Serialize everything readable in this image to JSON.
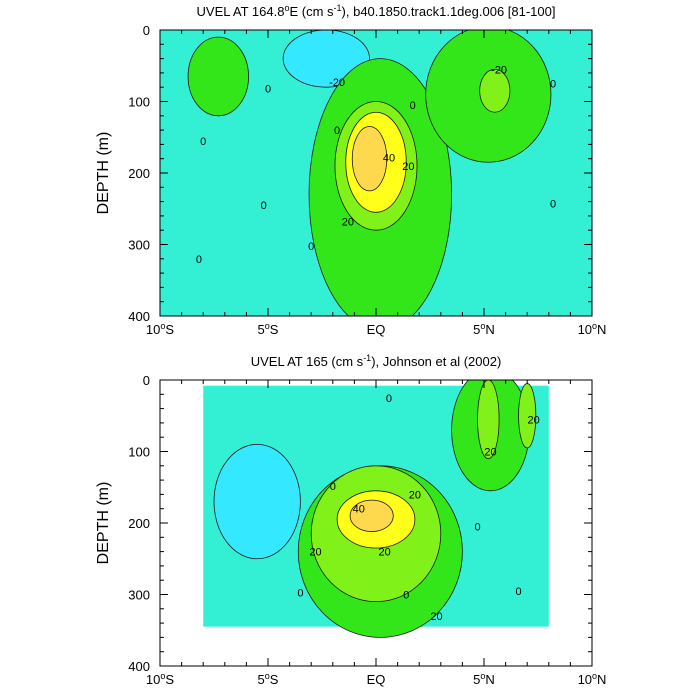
{
  "colors": {
    "neg_20": "#33e8ff",
    "neg_10": "#33e8ff",
    "c_0": "#33f0d4",
    "c_10": "#33e61a",
    "c_20": "#80f21a",
    "c_30": "#ffff1a",
    "c_40": "#ffd94d",
    "c_50": "#ffad33"
  },
  "chart_data": [
    {
      "type": "contour",
      "title": "UVEL AT 164.8°E (cm s⁻¹), b40.1850.track1.1deg.006 [81-100]",
      "title_parts": {
        "prefix": "UVEL AT 164.8",
        "sup1": "o",
        "mid": "E (cm s",
        "sup2": "-1",
        "suffix": "), b40.1850.track1.1deg.006 [81-100]"
      },
      "ylabel": "DEPTH (m)",
      "xlim": [
        -10,
        10
      ],
      "ylim": [
        400,
        0
      ],
      "x_ticks": [
        {
          "value": -10,
          "num": "10",
          "sup": "o",
          "hemi": "S"
        },
        {
          "value": -5,
          "num": "5",
          "sup": "o",
          "hemi": "S"
        },
        {
          "value": 0,
          "num": "EQ",
          "sup": "",
          "hemi": ""
        },
        {
          "value": 5,
          "num": "5",
          "sup": "o",
          "hemi": "N"
        },
        {
          "value": 10,
          "num": "10",
          "sup": "o",
          "hemi": "N"
        }
      ],
      "y_ticks": [
        0,
        100,
        200,
        300,
        400
      ],
      "contour_interval": 10,
      "background_level": 0,
      "features": [
        {
          "level": 10,
          "lat": -7.3,
          "depth_center": 65,
          "lat_halfwidth": 1.4,
          "depth_halfwidth": 55
        },
        {
          "level": 10,
          "lat": 0.2,
          "depth_center": 230,
          "lat_halfwidth": 3.3,
          "depth_halfwidth": 190
        },
        {
          "level": 10,
          "lat": 5.2,
          "depth_center": 90,
          "lat_halfwidth": 2.9,
          "depth_halfwidth": 95
        },
        {
          "level": 20,
          "lat": 0.0,
          "depth_center": 190,
          "lat_halfwidth": 1.9,
          "depth_halfwidth": 90
        },
        {
          "level": 20,
          "lat": 5.5,
          "depth_center": 85,
          "lat_halfwidth": 0.7,
          "depth_halfwidth": 30
        },
        {
          "level": 30,
          "lat": 0.0,
          "depth_center": 185,
          "lat_halfwidth": 1.4,
          "depth_halfwidth": 70
        },
        {
          "level": 40,
          "lat": -0.3,
          "depth_center": 180,
          "lat_halfwidth": 0.8,
          "depth_halfwidth": 45
        },
        {
          "level": -10,
          "lat": -2.3,
          "depth_center": 40,
          "lat_halfwidth": 2.0,
          "depth_halfwidth": 40
        }
      ],
      "contour_labels": [
        {
          "text": "-20",
          "lat": -1.8,
          "depth": 73
        },
        {
          "text": "-20",
          "lat": 5.7,
          "depth": 55
        },
        {
          "text": "40",
          "lat": 0.6,
          "depth": 178
        },
        {
          "text": "20",
          "lat": 1.5,
          "depth": 190
        },
        {
          "text": "20",
          "lat": -1.3,
          "depth": 268
        },
        {
          "text": "0",
          "lat": -8.0,
          "depth": 155
        },
        {
          "text": "0",
          "lat": -8.2,
          "depth": 320
        },
        {
          "text": "0",
          "lat": -5.0,
          "depth": 82
        },
        {
          "text": "0",
          "lat": -5.2,
          "depth": 245
        },
        {
          "text": "0",
          "lat": -1.8,
          "depth": 140
        },
        {
          "text": "0",
          "lat": -3.0,
          "depth": 302
        },
        {
          "text": "0",
          "lat": 1.7,
          "depth": 105
        },
        {
          "text": "0",
          "lat": 8.2,
          "depth": 75
        },
        {
          "text": "0",
          "lat": 8.2,
          "depth": 243
        }
      ]
    },
    {
      "type": "contour",
      "title": "UVEL AT 165 (cm s⁻¹), Johnson et al (2002)",
      "title_parts": {
        "prefix": "UVEL AT 165 (cm s",
        "sup1": "",
        "mid": "",
        "sup2": "-1",
        "suffix": "), Johnson et al (2002)"
      },
      "ylabel": "DEPTH (m)",
      "xlim": [
        -10,
        10
      ],
      "ylim": [
        400,
        0
      ],
      "x_ticks": [
        {
          "value": -10,
          "num": "10",
          "sup": "o",
          "hemi": "S"
        },
        {
          "value": -5,
          "num": "5",
          "sup": "o",
          "hemi": "S"
        },
        {
          "value": 0,
          "num": "EQ",
          "sup": "",
          "hemi": ""
        },
        {
          "value": 5,
          "num": "5",
          "sup": "o",
          "hemi": "N"
        },
        {
          "value": 10,
          "num": "10",
          "sup": "o",
          "hemi": "N"
        }
      ],
      "y_ticks": [
        0,
        100,
        200,
        300,
        400
      ],
      "contour_interval": 10,
      "background_level": 0,
      "data_extent": {
        "lat": [
          -8,
          8
        ],
        "depth_top": 8,
        "depth_bottom": 345
      },
      "features": [
        {
          "level": 10,
          "lat": 0.2,
          "depth_center": 240,
          "lat_halfwidth": 3.8,
          "depth_halfwidth": 120
        },
        {
          "level": 10,
          "lat": 5.3,
          "depth_center": 70,
          "lat_halfwidth": 1.8,
          "depth_halfwidth": 85
        },
        {
          "level": 20,
          "lat": 0.0,
          "depth_center": 215,
          "lat_halfwidth": 3.0,
          "depth_halfwidth": 95
        },
        {
          "level": 20,
          "lat": 5.2,
          "depth_center": 55,
          "lat_halfwidth": 0.5,
          "depth_halfwidth": 55
        },
        {
          "level": 20,
          "lat": 7.0,
          "depth_center": 50,
          "lat_halfwidth": 0.4,
          "depth_halfwidth": 45
        },
        {
          "level": 30,
          "lat": 0.0,
          "depth_center": 195,
          "lat_halfwidth": 1.8,
          "depth_halfwidth": 40
        },
        {
          "level": 40,
          "lat": -0.2,
          "depth_center": 190,
          "lat_halfwidth": 1.0,
          "depth_halfwidth": 22
        },
        {
          "level": -10,
          "lat": -5.5,
          "depth_center": 170,
          "lat_halfwidth": 2.0,
          "depth_halfwidth": 80
        }
      ],
      "contour_labels": [
        {
          "text": "40",
          "lat": -0.8,
          "depth": 180
        },
        {
          "text": "20",
          "lat": 1.8,
          "depth": 160
        },
        {
          "text": "20",
          "lat": -2.8,
          "depth": 240
        },
        {
          "text": "20",
          "lat": 0.4,
          "depth": 240
        },
        {
          "text": "20",
          "lat": 5.3,
          "depth": 100
        },
        {
          "text": "20",
          "lat": 7.3,
          "depth": 55
        },
        {
          "text": "20",
          "lat": 2.8,
          "depth": 330
        },
        {
          "text": "0",
          "lat": 0.6,
          "depth": 25
        },
        {
          "text": "0",
          "lat": -2.0,
          "depth": 148
        },
        {
          "text": "0",
          "lat": 4.7,
          "depth": 205
        },
        {
          "text": "0",
          "lat": -3.5,
          "depth": 297
        },
        {
          "text": "0",
          "lat": 1.4,
          "depth": 300
        },
        {
          "text": "0",
          "lat": 6.6,
          "depth": 295
        }
      ]
    }
  ]
}
